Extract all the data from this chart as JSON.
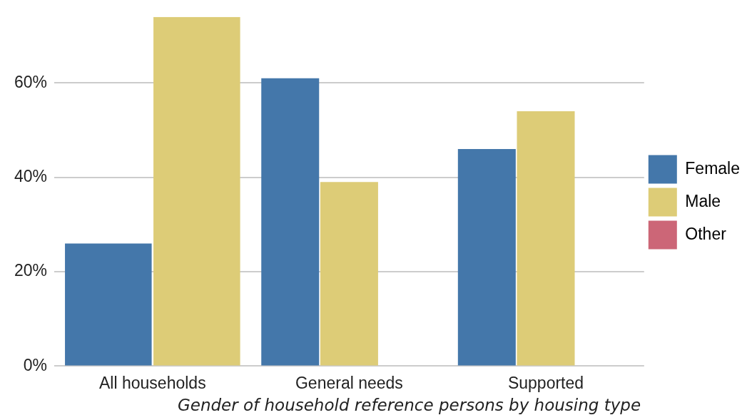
{
  "chart_data": {
    "type": "bar",
    "title": "Gender of household reference persons by housing type",
    "categories": [
      "All households",
      "General needs",
      "Supported"
    ],
    "series": [
      {
        "name": "Female",
        "color": "#4477aa",
        "values": [
          26,
          61,
          46
        ]
      },
      {
        "name": "Male",
        "color": "#ddcc77",
        "values": [
          74,
          39,
          54
        ]
      },
      {
        "name": "Other",
        "color": "#cc6677",
        "values": [
          null,
          0,
          0
        ]
      }
    ],
    "ylim": [
      0,
      74
    ],
    "yticks": [
      {
        "value": 0,
        "label": "0%"
      },
      {
        "value": 20,
        "label": "20%"
      },
      {
        "value": 40,
        "label": "40%"
      },
      {
        "value": 60,
        "label": "60%"
      }
    ],
    "grid": "y",
    "legend": "right"
  }
}
